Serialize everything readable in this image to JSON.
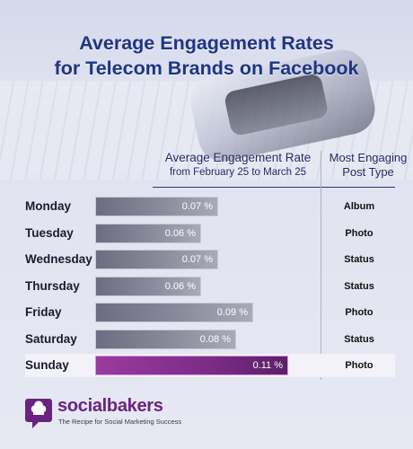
{
  "title_line1": "Average Engagement Rates",
  "title_line2": "for Telecom Brands on Facebook",
  "columns": {
    "rate_header": "Average Engagement Rate",
    "rate_subheader": "from February 25 to March 25",
    "type_header_line1": "Most Engaging",
    "type_header_line2": "Post Type"
  },
  "chart_data": {
    "type": "bar",
    "orientation": "horizontal",
    "title": "Average Engagement Rates for Telecom Brands on Facebook",
    "categories": [
      "Monday",
      "Tuesday",
      "Wednesday",
      "Thursday",
      "Friday",
      "Saturday",
      "Sunday"
    ],
    "values": [
      0.07,
      0.06,
      0.07,
      0.06,
      0.09,
      0.08,
      0.11
    ],
    "value_labels": [
      "0.07 %",
      "0.06 %",
      "0.07 %",
      "0.06 %",
      "0.09 %",
      "0.08 %",
      "0.11 %"
    ],
    "post_types": [
      "Album",
      "Photo",
      "Status",
      "Status",
      "Photo",
      "Status",
      "Photo"
    ],
    "highlight_index": 6,
    "unit": "%",
    "xlim": [
      0,
      0.12
    ]
  },
  "colors": {
    "title": "#1f3584",
    "bar": "#7b7c8e",
    "bar_highlight": "#8a3496",
    "brand": "#6a2480"
  },
  "footer": {
    "logo_icon": "socialbakers-chef-hat-icon",
    "brand": "socialbakers",
    "tagline": "The Recipe for Social Marketing Success"
  }
}
